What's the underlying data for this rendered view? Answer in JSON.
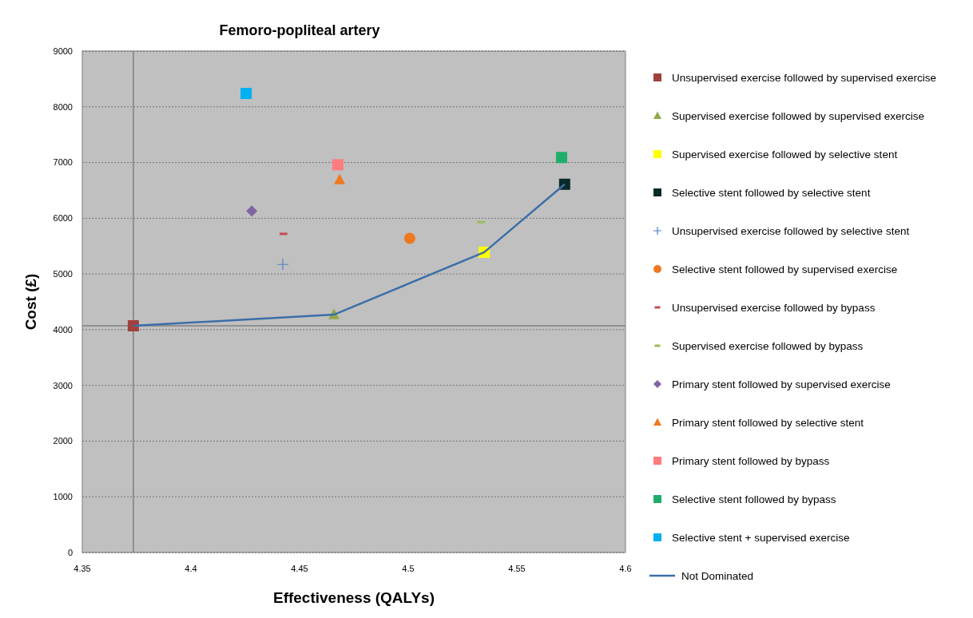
{
  "chart_data": {
    "type": "scatter",
    "title": "Femoro-popliteal artery",
    "xlabel": "Effectiveness (QALYs)",
    "ylabel": "Cost (£)",
    "xlim": [
      4.35,
      4.6
    ],
    "xticks": [
      4.35,
      4.4,
      4.45,
      4.5,
      4.55,
      4.6
    ],
    "ylim": [
      0,
      9000
    ],
    "yticks": [
      0,
      1000,
      2000,
      3000,
      4000,
      5000,
      6000,
      7000,
      8000,
      9000
    ],
    "grid": "y",
    "legend": "right",
    "ref_lines": [
      {
        "axis": "x",
        "value": 4.3735,
        "color": "#808080"
      },
      {
        "axis": "y",
        "value": 4070,
        "color": "#808080"
      }
    ],
    "series": [
      {
        "name": "Unsupervised exercise followed by supervised exercise",
        "color": "#a0413c",
        "marker": "square",
        "x": [
          4.3735
        ],
        "values": [
          4070
        ]
      },
      {
        "name": "Supervised exercise followed by supervised exercise",
        "color": "#8faa4a",
        "marker": "triangle",
        "x": [
          4.4658
        ],
        "values": [
          4270
        ]
      },
      {
        "name": "Supervised exercise followed by selective stent",
        "color": "#ffff00",
        "marker": "square",
        "x": [
          4.535
        ],
        "values": [
          5390
        ]
      },
      {
        "name": "Selective stent followed by selective stent",
        "color": "#0a2a2a",
        "marker": "square",
        "x": [
          4.572
        ],
        "values": [
          6610
        ]
      },
      {
        "name": "Unsupervised exercise followed by selective stent",
        "color": "#4f81bd",
        "marker": "cross",
        "x": [
          4.4423
        ],
        "values": [
          5170
        ]
      },
      {
        "name": "Selective stent followed by supervised exercise",
        "color": "#f07820",
        "marker": "circle",
        "x": [
          4.5007
        ],
        "values": [
          5640
        ]
      },
      {
        "name": "Unsupervised exercise followed by bypass",
        "color": "#c0504d",
        "x": [
          4.4426
        ],
        "values": [
          5720
        ]
      },
      {
        "name": "Supervised exercise followed by bypass",
        "color": "#9bbb59",
        "x": [
          4.5335
        ],
        "values": [
          5930
        ]
      },
      {
        "name": "Primary stent followed by supervised exercise",
        "color": "#8064a2",
        "marker": "diamond",
        "x": [
          4.428
        ],
        "values": [
          6130
        ]
      },
      {
        "name": "Primary stent followed by selective stent",
        "color": "#f07820",
        "marker": "triangle",
        "x": [
          4.4684
        ],
        "values": [
          6690
        ]
      },
      {
        "name": "Primary stent followed by bypass",
        "color": "#ff7c80",
        "marker": "square",
        "x": [
          4.4676
        ],
        "values": [
          6960
        ]
      },
      {
        "name": "Selective stent followed by bypass",
        "color": "#1fae6a",
        "marker": "square",
        "x": [
          4.5706
        ],
        "values": [
          7090
        ]
      },
      {
        "name": "Selective stent + supervised exercise",
        "color": "#00b0f0",
        "marker": "square",
        "x": [
          4.4254
        ],
        "values": [
          8240
        ]
      },
      {
        "name": "Not Dominated",
        "type": "line",
        "color": "#3c6ea8",
        "marker": "none",
        "line_style": "solid",
        "x": [
          4.3735,
          4.4658,
          4.535,
          4.572
        ],
        "values": [
          4070,
          4270,
          5390,
          6610
        ]
      }
    ]
  }
}
